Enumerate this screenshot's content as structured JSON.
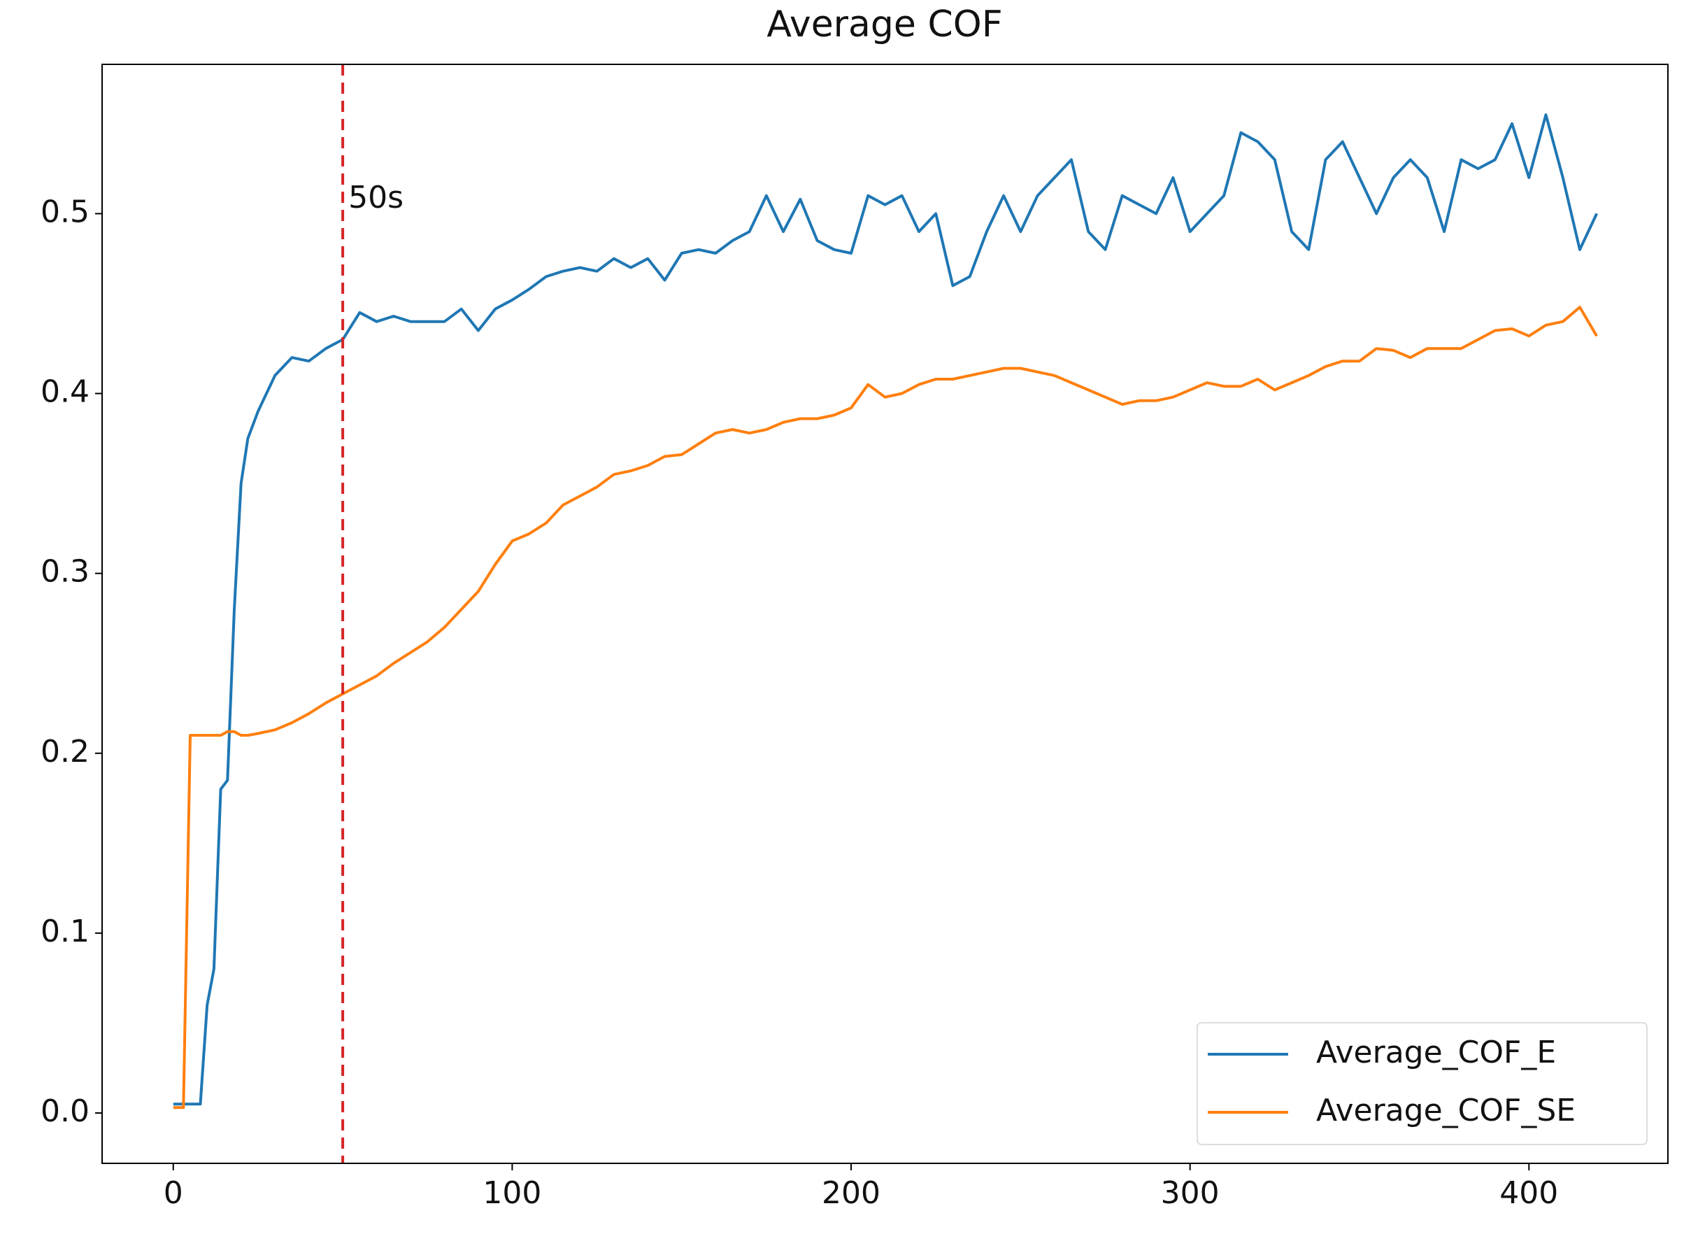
{
  "chart_data": {
    "type": "line",
    "title": "Average COF",
    "x": [
      0,
      3,
      5,
      8,
      10,
      12,
      14,
      16,
      18,
      20,
      22,
      25,
      30,
      35,
      40,
      45,
      50,
      55,
      60,
      65,
      70,
      75,
      80,
      85,
      90,
      95,
      100,
      105,
      110,
      115,
      120,
      125,
      130,
      135,
      140,
      145,
      150,
      155,
      160,
      165,
      170,
      175,
      180,
      185,
      190,
      195,
      200,
      205,
      210,
      215,
      220,
      225,
      230,
      235,
      240,
      245,
      250,
      255,
      260,
      265,
      270,
      275,
      280,
      285,
      290,
      295,
      300,
      305,
      310,
      315,
      320,
      325,
      330,
      335,
      340,
      345,
      350,
      355,
      360,
      365,
      370,
      375,
      380,
      385,
      390,
      395,
      400,
      405,
      410,
      415,
      420
    ],
    "series": [
      {
        "name": "Average_COF_E",
        "color": "#1f77b4",
        "values": [
          0.005,
          0.005,
          0.005,
          0.005,
          0.06,
          0.08,
          0.18,
          0.185,
          0.28,
          0.35,
          0.375,
          0.39,
          0.41,
          0.42,
          0.418,
          0.425,
          0.43,
          0.445,
          0.44,
          0.443,
          0.44,
          0.44,
          0.44,
          0.447,
          0.435,
          0.447,
          0.452,
          0.458,
          0.465,
          0.468,
          0.47,
          0.468,
          0.475,
          0.47,
          0.475,
          0.463,
          0.478,
          0.48,
          0.478,
          0.485,
          0.49,
          0.51,
          0.49,
          0.508,
          0.485,
          0.48,
          0.478,
          0.51,
          0.505,
          0.51,
          0.49,
          0.5,
          0.46,
          0.465,
          0.49,
          0.51,
          0.49,
          0.51,
          0.52,
          0.53,
          0.49,
          0.48,
          0.51,
          0.505,
          0.5,
          0.52,
          0.49,
          0.5,
          0.51,
          0.545,
          0.54,
          0.53,
          0.49,
          0.48,
          0.53,
          0.54,
          0.52,
          0.5,
          0.52,
          0.53,
          0.52,
          0.49,
          0.53,
          0.525,
          0.53,
          0.55,
          0.52,
          0.555,
          0.52,
          0.48,
          0.5
        ]
      },
      {
        "name": "Average_COF_SE",
        "color": "#ff7f0e",
        "values": [
          0.003,
          0.003,
          0.21,
          0.21,
          0.21,
          0.21,
          0.21,
          0.212,
          0.212,
          0.21,
          0.21,
          0.211,
          0.213,
          0.217,
          0.222,
          0.228,
          0.233,
          0.238,
          0.243,
          0.25,
          0.256,
          0.262,
          0.27,
          0.28,
          0.29,
          0.305,
          0.318,
          0.322,
          0.328,
          0.338,
          0.343,
          0.348,
          0.355,
          0.357,
          0.36,
          0.365,
          0.366,
          0.372,
          0.378,
          0.38,
          0.378,
          0.38,
          0.384,
          0.386,
          0.386,
          0.388,
          0.392,
          0.405,
          0.398,
          0.4,
          0.405,
          0.408,
          0.408,
          0.41,
          0.412,
          0.414,
          0.414,
          0.412,
          0.41,
          0.406,
          0.402,
          0.398,
          0.394,
          0.396,
          0.396,
          0.398,
          0.402,
          0.406,
          0.404,
          0.404,
          0.408,
          0.402,
          0.406,
          0.41,
          0.415,
          0.418,
          0.418,
          0.425,
          0.424,
          0.42,
          0.425,
          0.425,
          0.425,
          0.43,
          0.435,
          0.436,
          0.432,
          0.438,
          0.44,
          0.448,
          0.432
        ]
      }
    ],
    "xlim": [
      -21,
      441
    ],
    "xticks": [
      0,
      100,
      200,
      300,
      400
    ],
    "ylim": [
      -0.028,
      0.583
    ],
    "yticks": [
      {
        "value": 0,
        "label": "0.0"
      },
      0.1,
      0.2,
      0.3,
      0.4,
      0.5
    ],
    "vline": {
      "x": 50,
      "label": "50s",
      "color": "#d62728"
    },
    "legend": "lower right",
    "grid": false
  }
}
